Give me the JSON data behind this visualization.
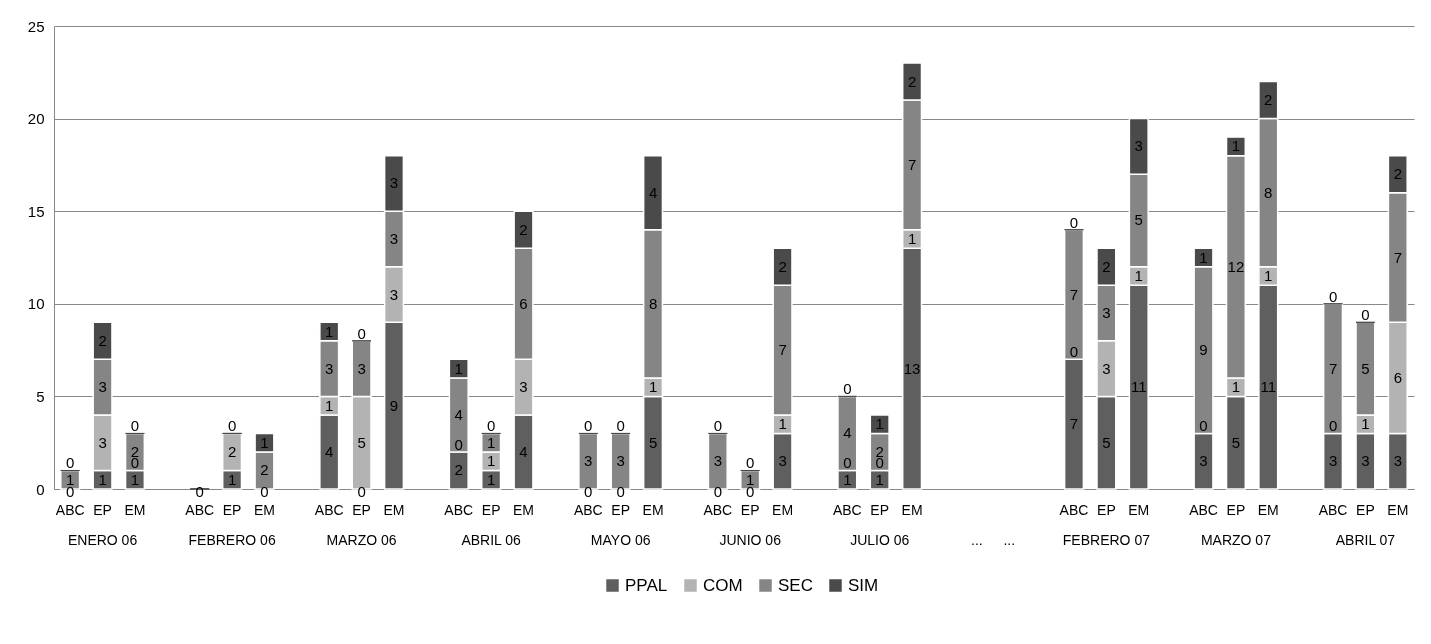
{
  "chart_data": {
    "type": "bar",
    "stacked": true,
    "grid": "y",
    "legend": "bottom",
    "categories": [
      "ABC",
      "EP",
      "EM",
      null,
      "ABC",
      "EP",
      "EM",
      null,
      "ABC",
      "EP",
      "EM",
      null,
      "ABC",
      "EP",
      "EM",
      null,
      "ABC",
      "EP",
      "EM",
      null,
      "ABC",
      "EP",
      "EM",
      null,
      "ABC",
      "EP",
      "EM",
      null,
      null,
      null,
      null,
      "ABC",
      "EP",
      "EM",
      null,
      "ABC",
      "EP",
      "EM",
      null,
      "ABC",
      "EP",
      "EM"
    ],
    "annotations": [
      "ENERO 06",
      "FEBRERO 06",
      "MARZO 06",
      "ABRIL 06",
      "MAYO 06",
      "JUNIO 06",
      "JULIO 06",
      "...",
      "...",
      "FEBRERO 07",
      "MARZO 07",
      "ABRIL 07"
    ],
    "ylim": [
      0,
      25
    ],
    "yticks": [
      0,
      5,
      10,
      15,
      20,
      25
    ],
    "series": [
      {
        "name": "PPAL",
        "color": "#5f5f5f",
        "values": [
          0,
          1,
          1,
          null,
          0,
          1,
          0,
          null,
          4,
          0,
          9,
          null,
          2,
          1,
          4,
          null,
          0,
          0,
          5,
          null,
          0,
          0,
          3,
          null,
          1,
          1,
          13,
          null,
          null,
          null,
          null,
          7,
          5,
          11,
          null,
          3,
          5,
          11,
          null,
          3,
          3,
          3
        ],
        "value_labels": [
          "0",
          "1",
          "1",
          null,
          "0",
          "1",
          "0",
          null,
          "4",
          "0",
          "9",
          null,
          "2",
          "1",
          "4",
          null,
          "0",
          "0",
          "5",
          null,
          "0",
          "0",
          "3",
          null,
          "1",
          "1",
          "13",
          null,
          null,
          null,
          null,
          "7",
          "5",
          "11",
          null,
          "3",
          "5",
          "11",
          null,
          "3",
          "3",
          "3"
        ]
      },
      {
        "name": "COM",
        "color": "#b3b3b3",
        "values": [
          0,
          3,
          0,
          null,
          0,
          2,
          0,
          null,
          1,
          5,
          3,
          null,
          0,
          1,
          3,
          null,
          0,
          0,
          1,
          null,
          0,
          0,
          1,
          null,
          0,
          0,
          1,
          null,
          null,
          null,
          null,
          0,
          3,
          1,
          null,
          0,
          1,
          1,
          null,
          0,
          1,
          6
        ],
        "value_labels": [
          null,
          "3",
          "0",
          null,
          null,
          "2",
          null,
          null,
          "1",
          "5",
          "3",
          null,
          "0",
          "1",
          "3",
          null,
          null,
          null,
          "1",
          null,
          null,
          null,
          "1",
          null,
          "0",
          "0",
          "1",
          null,
          null,
          null,
          null,
          "0",
          "3",
          "1",
          null,
          "0",
          "1",
          "1",
          null,
          "0",
          "1",
          "6"
        ]
      },
      {
        "name": "SEC",
        "color": "#858585",
        "values": [
          1,
          3,
          2,
          null,
          0,
          0,
          2,
          null,
          3,
          3,
          3,
          null,
          4,
          1,
          6,
          null,
          3,
          3,
          8,
          null,
          3,
          1,
          7,
          null,
          4,
          2,
          7,
          null,
          null,
          null,
          null,
          7,
          3,
          5,
          null,
          9,
          12,
          8,
          null,
          7,
          5,
          7
        ],
        "value_labels": [
          "1",
          "3",
          "2",
          null,
          null,
          "0",
          "2",
          null,
          "3",
          "3",
          "3",
          null,
          "4",
          "1",
          "6",
          null,
          "3",
          "3",
          "8",
          null,
          "3",
          "1",
          "7",
          null,
          "4",
          "2",
          "7",
          null,
          null,
          null,
          null,
          "7",
          "3",
          "5",
          null,
          "9",
          "12",
          "8",
          null,
          "7",
          "5",
          "7"
        ]
      },
      {
        "name": "SIM",
        "color": "#4a4a4a",
        "values": [
          0,
          2,
          0,
          null,
          0,
          0,
          1,
          null,
          1,
          0,
          3,
          null,
          1,
          0,
          2,
          null,
          0,
          0,
          4,
          null,
          0,
          0,
          2,
          null,
          0,
          1,
          2,
          null,
          null,
          null,
          null,
          0,
          2,
          3,
          null,
          1,
          1,
          2,
          null,
          0,
          0,
          2
        ],
        "value_labels": [
          "0",
          "2",
          "0",
          null,
          null,
          null,
          "1",
          null,
          "1",
          "0",
          "3",
          null,
          "1",
          "0",
          "2",
          null,
          "0",
          "0",
          "4",
          null,
          "0",
          "0",
          "2",
          null,
          "0",
          "1",
          "2",
          null,
          null,
          null,
          null,
          "0",
          "2",
          "3",
          null,
          "1",
          "1",
          "2",
          null,
          "0",
          "0",
          "2"
        ]
      }
    ]
  }
}
